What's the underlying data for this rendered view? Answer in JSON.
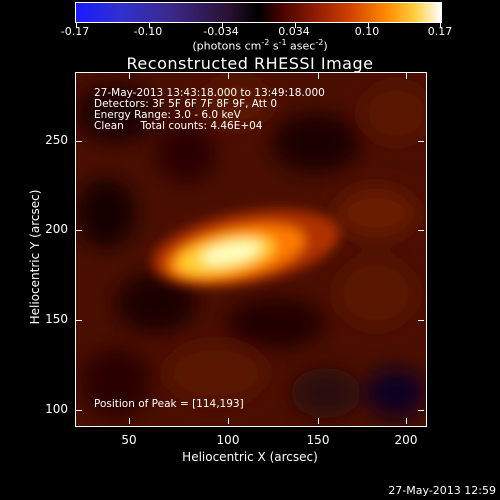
{
  "colorbar": {
    "tick_labels": [
      "-0.17",
      "-0.10",
      "-0.034",
      "0.034",
      "0.10",
      "0.17"
    ],
    "units": "(photons cm",
    "units_exp1": "-2",
    "units_mid": " s",
    "units_exp2": "-1",
    "units_mid2": " asec",
    "units_exp3": "-2",
    "units_end": ")"
  },
  "title": "Reconstructed RHESSI Image",
  "info_lines": {
    "line1": "27-May-2013 13:43:18.000 to 13:49:18.000",
    "line2": "Detectors: 3F 5F 6F 7F 8F 9F, Att 0",
    "line3": "Energy Range: 3.0 - 6.0 keV",
    "line4": "Clean     Total counts: 4.46E+04"
  },
  "peak_text": "Position of Peak = [114,193]",
  "axes": {
    "xlabel": "Heliocentric X (arcsec)",
    "ylabel": "Heliocentric Y (arcsec)",
    "xticks": [
      "50",
      "100",
      "150",
      "200"
    ],
    "yticks": [
      "250",
      "200",
      "150",
      "100"
    ]
  },
  "timestamp": "27-May-2013 12:59",
  "colors": {
    "background": "#000000",
    "map_dark": "#3a0a00",
    "map_hot": "#ffffc0"
  }
}
